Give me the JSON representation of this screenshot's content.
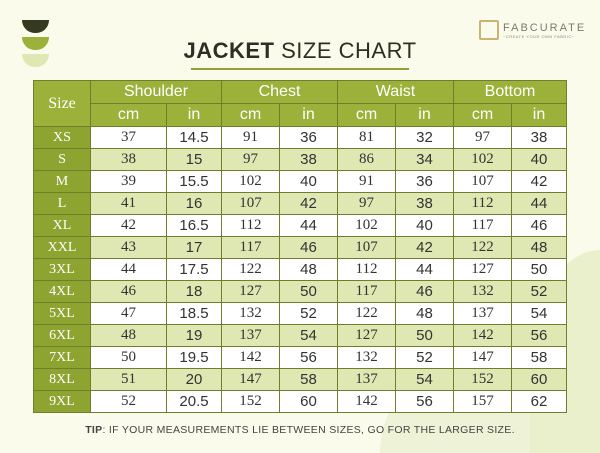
{
  "title": {
    "bold": "JACKET",
    "rest": " SIZE CHART"
  },
  "logo": {
    "name": "FABCURATE",
    "tagline": "~CREATE YOUR OWN FABRIC~"
  },
  "colors": {
    "header": "#9bb13a",
    "size_column": "#8ea431",
    "alt_row": "#dfe7b3",
    "background": "#fafbea",
    "deco": [
      "#34391f",
      "#9bb13a",
      "#dfe7b3"
    ]
  },
  "table": {
    "size_label": "Size",
    "groups": [
      "Shoulder",
      "Chest",
      "Waist",
      "Bottom"
    ],
    "units": [
      "cm",
      "in",
      "cm",
      "in",
      "cm",
      "in",
      "cm",
      "in"
    ],
    "rows": [
      {
        "size": "XS",
        "values": [
          "37",
          "14.5",
          "91",
          "36",
          "81",
          "32",
          "97",
          "38"
        ]
      },
      {
        "size": "S",
        "values": [
          "38",
          "15",
          "97",
          "38",
          "86",
          "34",
          "102",
          "40"
        ]
      },
      {
        "size": "M",
        "values": [
          "39",
          "15.5",
          "102",
          "40",
          "91",
          "36",
          "107",
          "42"
        ]
      },
      {
        "size": "L",
        "values": [
          "41",
          "16",
          "107",
          "42",
          "97",
          "38",
          "112",
          "44"
        ]
      },
      {
        "size": "XL",
        "values": [
          "42",
          "16.5",
          "112",
          "44",
          "102",
          "40",
          "117",
          "46"
        ]
      },
      {
        "size": "XXL",
        "values": [
          "43",
          "17",
          "117",
          "46",
          "107",
          "42",
          "122",
          "48"
        ]
      },
      {
        "size": "3XL",
        "values": [
          "44",
          "17.5",
          "122",
          "48",
          "112",
          "44",
          "127",
          "50"
        ]
      },
      {
        "size": "4XL",
        "values": [
          "46",
          "18",
          "127",
          "50",
          "117",
          "46",
          "132",
          "52"
        ]
      },
      {
        "size": "5XL",
        "values": [
          "47",
          "18.5",
          "132",
          "52",
          "122",
          "48",
          "137",
          "54"
        ]
      },
      {
        "size": "6XL",
        "values": [
          "48",
          "19",
          "137",
          "54",
          "127",
          "50",
          "142",
          "56"
        ]
      },
      {
        "size": "7XL",
        "values": [
          "50",
          "19.5",
          "142",
          "56",
          "132",
          "52",
          "147",
          "58"
        ]
      },
      {
        "size": "8XL",
        "values": [
          "51",
          "20",
          "147",
          "58",
          "137",
          "54",
          "152",
          "60"
        ]
      },
      {
        "size": "9XL",
        "values": [
          "52",
          "20.5",
          "152",
          "60",
          "142",
          "56",
          "157",
          "62"
        ]
      }
    ]
  },
  "tip": {
    "label": "TIP",
    "text": ": IF YOUR MEASUREMENTS LIE BETWEEN SIZES, GO FOR THE LARGER SIZE."
  }
}
